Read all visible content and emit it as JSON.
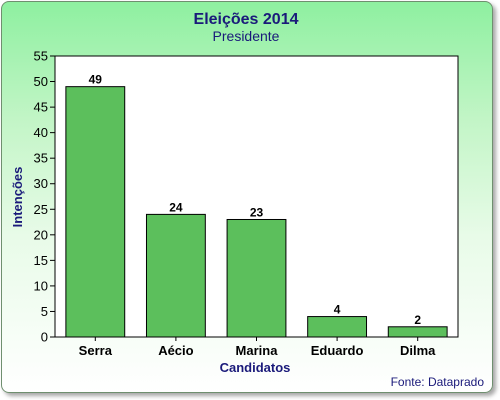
{
  "chart_data": {
    "type": "bar",
    "title": "Eleições 2014",
    "subtitle": "Presidente",
    "xlabel": "Candidatos",
    "ylabel": "Intenções",
    "categories": [
      "Serra",
      "Aécio",
      "Marina",
      "Eduardo",
      "Dilma"
    ],
    "values": [
      49,
      24,
      23,
      4,
      2
    ],
    "ylim": [
      0,
      55
    ],
    "yticks": [
      0,
      5,
      10,
      15,
      20,
      25,
      30,
      35,
      40,
      45,
      50,
      55
    ],
    "grid": false,
    "bar_color": "#5cbf5c",
    "bar_stroke": "#000000",
    "source": "Fonte: Dataprado"
  }
}
